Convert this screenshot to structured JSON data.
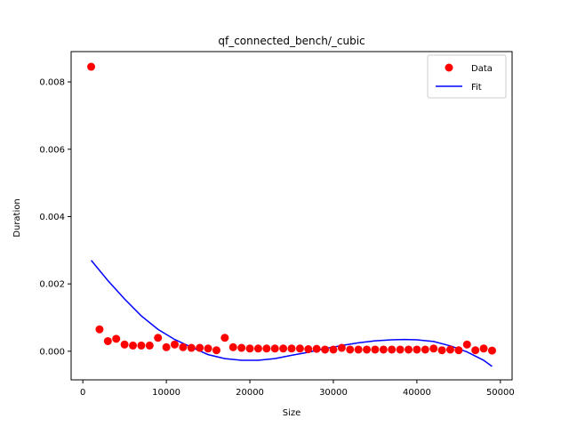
{
  "chart_data": {
    "type": "scatter",
    "title": "qf_connected_bench/_cubic",
    "xlabel": "Size",
    "ylabel": "Duration",
    "xlim": [
      -1400,
      51400
    ],
    "ylim": [
      -0.00085,
      0.0089
    ],
    "xticks": [
      0,
      10000,
      20000,
      30000,
      40000,
      50000
    ],
    "xtick_labels": [
      "0",
      "10000",
      "20000",
      "30000",
      "40000",
      "50000"
    ],
    "yticks": [
      0.0,
      0.002,
      0.004,
      0.006,
      0.008
    ],
    "ytick_labels": [
      "0.000",
      "0.002",
      "0.004",
      "0.006",
      "0.008"
    ],
    "grid": false,
    "legend_placement": "top-right",
    "series": [
      {
        "name": "Data",
        "kind": "scatter",
        "color": "#ff0000",
        "x": [
          1000,
          2000,
          3000,
          4000,
          5000,
          6000,
          7000,
          8000,
          9000,
          10000,
          11000,
          12000,
          13000,
          14000,
          15000,
          16000,
          17000,
          18000,
          19000,
          20000,
          21000,
          22000,
          23000,
          24000,
          25000,
          26000,
          27000,
          28000,
          29000,
          30000,
          31000,
          32000,
          33000,
          34000,
          35000,
          36000,
          37000,
          38000,
          39000,
          40000,
          41000,
          42000,
          43000,
          44000,
          45000,
          46000,
          47000,
          48000,
          49000
        ],
        "y": [
          0.00845,
          0.00065,
          0.0003,
          0.00037,
          0.0002,
          0.00017,
          0.00017,
          0.00017,
          0.0004,
          0.00012,
          0.0002,
          0.00012,
          0.0001,
          0.0001,
          8e-05,
          3e-05,
          0.0004,
          0.00012,
          0.0001,
          8e-05,
          8e-05,
          8e-05,
          8e-05,
          8e-05,
          8e-05,
          8e-05,
          6e-05,
          7e-05,
          5e-05,
          5e-05,
          0.0001,
          5e-05,
          5e-05,
          5e-05,
          5e-05,
          5e-05,
          5e-05,
          5e-05,
          5e-05,
          5e-05,
          5e-05,
          8e-05,
          3e-05,
          5e-05,
          3e-05,
          0.0002,
          3e-05,
          8e-05,
          2e-05
        ]
      },
      {
        "name": "Fit",
        "kind": "line",
        "color": "#0000ff",
        "x": [
          1000,
          3000,
          5000,
          7000,
          9000,
          11000,
          13000,
          15000,
          17000,
          19000,
          21000,
          23000,
          25000,
          27000,
          29000,
          31000,
          33000,
          35000,
          37000,
          38500,
          40000,
          42000,
          44000,
          46000,
          48000,
          49000
        ],
        "y": [
          0.0027,
          0.0021,
          0.00155,
          0.00105,
          0.00065,
          0.00035,
          0.00012,
          -0.0001,
          -0.00022,
          -0.00027,
          -0.00027,
          -0.00022,
          -0.00012,
          -3e-05,
          8e-05,
          0.00017,
          0.00025,
          0.00031,
          0.00034,
          0.00035,
          0.00034,
          0.00029,
          0.00016,
          -2e-05,
          -0.00027,
          -0.00045
        ]
      }
    ]
  }
}
